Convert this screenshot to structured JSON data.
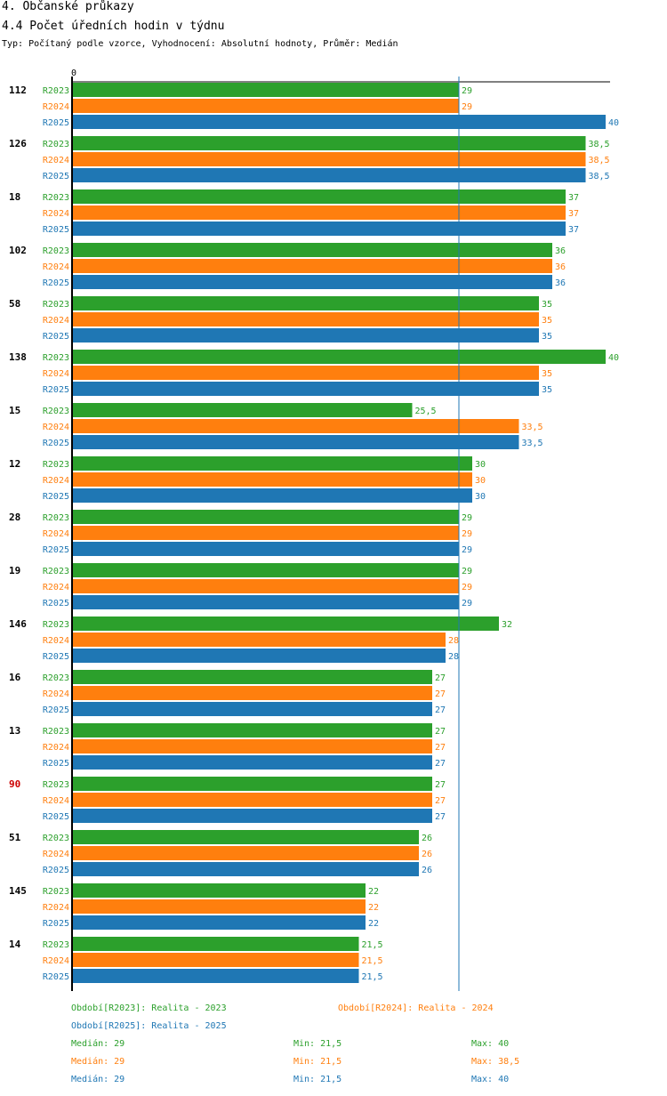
{
  "section_title": "4. Občanské průkazy",
  "chart_title": "4.4 Počet úředních hodin v týdnu",
  "subtitle": "Typ: Počítaný podle vzorce, Vyhodnocení: Absolutní hodnoty, Průměr: Medián",
  "colors": {
    "R2023": "#2ca02c",
    "R2024": "#ff7f0e",
    "R2025": "#1f77b4",
    "highlight": "#cc0000",
    "axis": "#000000",
    "median_line": "#1f77b4"
  },
  "chart_data": {
    "type": "bar",
    "orientation": "horizontal",
    "title": "4.4 Počet úředních hodin v týdnu",
    "axis_zero_label": "0",
    "xlim": [
      0,
      40
    ],
    "median_line": 29,
    "series_names": [
      "R2023",
      "R2024",
      "R2025"
    ],
    "highlight_category": "90",
    "categories": [
      "112",
      "126",
      "18",
      "102",
      "58",
      "138",
      "15",
      "12",
      "28",
      "19",
      "146",
      "16",
      "13",
      "90",
      "51",
      "145",
      "14"
    ],
    "series": [
      {
        "name": "R2023",
        "labels": [
          "29",
          "38,5",
          "37",
          "36",
          "35",
          "40",
          "25,5",
          "30",
          "29",
          "29",
          "32",
          "27",
          "27",
          "27",
          "26",
          "22",
          "21,5"
        ],
        "values": [
          29,
          38.5,
          37,
          36,
          35,
          40,
          25.5,
          30,
          29,
          29,
          32,
          27,
          27,
          27,
          26,
          22,
          21.5
        ]
      },
      {
        "name": "R2024",
        "labels": [
          "29",
          "38,5",
          "37",
          "36",
          "35",
          "35",
          "33,5",
          "30",
          "29",
          "29",
          "28",
          "27",
          "27",
          "27",
          "26",
          "22",
          "21,5"
        ],
        "values": [
          29,
          38.5,
          37,
          36,
          35,
          35,
          33.5,
          30,
          29,
          29,
          28,
          27,
          27,
          27,
          26,
          22,
          21.5
        ]
      },
      {
        "name": "R2025",
        "labels": [
          "40",
          "38,5",
          "37",
          "36",
          "35",
          "35",
          "33,5",
          "30",
          "29",
          "29",
          "28",
          "27",
          "27",
          "27",
          "26",
          "22",
          "21,5"
        ],
        "values": [
          40,
          38.5,
          37,
          36,
          35,
          35,
          33.5,
          30,
          29,
          29,
          28,
          27,
          27,
          27,
          26,
          22,
          21.5
        ]
      }
    ]
  },
  "legend": {
    "period_r2023": "Období[R2023]: Realita - 2023",
    "period_r2024": "Období[R2024]: Realita - 2024",
    "period_r2025": "Období[R2025]: Realita - 2025",
    "stats": [
      {
        "median": "Medián: 29",
        "min": "Min: 21,5",
        "max": "Max: 40"
      },
      {
        "median": "Medián: 29",
        "min": "Min: 21,5",
        "max": "Max: 38,5"
      },
      {
        "median": "Medián: 29",
        "min": "Min: 21,5",
        "max": "Max: 40"
      }
    ]
  }
}
